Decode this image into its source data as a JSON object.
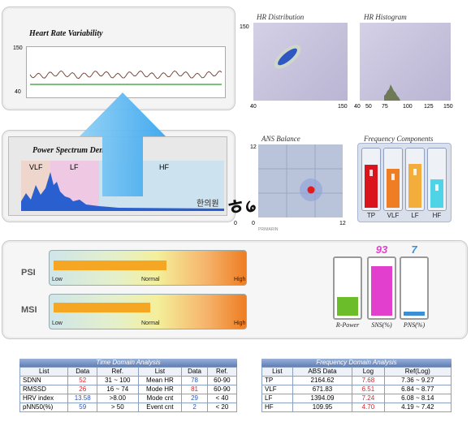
{
  "hrv": {
    "title": "Heart Rate Variability",
    "y_max": "150",
    "y_min": "40"
  },
  "hr_distribution": {
    "title": "HR Distribution",
    "y_max": "150",
    "x_min": "40",
    "x_max": "150"
  },
  "hr_histogram": {
    "title": "HR Histogram",
    "x_ticks": [
      "40",
      "50",
      "75",
      "100",
      "125",
      "150"
    ]
  },
  "psd": {
    "title": "Power Spectrum Den",
    "bands": [
      "VLF",
      "LF",
      "HF"
    ]
  },
  "watermark": {
    "korean": "한의원",
    "stamp": "PRIMARIN"
  },
  "ans_balance": {
    "title": "ANS Balance",
    "y_max": "12",
    "x_min": "0",
    "x_max": "12",
    "y_min": "0"
  },
  "freq_components": {
    "title": "Frequency Components",
    "bars": [
      {
        "label": "TP",
        "level": 0.75,
        "color": "#d9141c"
      },
      {
        "label": "VLF",
        "level": 0.68,
        "color": "#ef7d23"
      },
      {
        "label": "LF",
        "level": 0.77,
        "color": "#f3ad3b"
      },
      {
        "label": "HF",
        "level": 0.5,
        "color": "#4fd3e6"
      }
    ]
  },
  "psi": {
    "label": "PSI",
    "level": 0.61,
    "low": "Low",
    "normal": "Normal",
    "high": "High"
  },
  "msi": {
    "label": "MSI",
    "level": 0.52,
    "low": "Low",
    "normal": "Normal",
    "high": "High"
  },
  "gauges": [
    {
      "label": "R-Power",
      "value": "",
      "level": 0.35,
      "color": "#6bbd2a"
    },
    {
      "label": "SNS(%)",
      "value": "93",
      "level": 0.93,
      "color": "#e23fcf"
    },
    {
      "label": "PNS(%)",
      "value": "7",
      "level": 0.07,
      "color": "#3a8fd6"
    }
  ],
  "time_domain": {
    "caption": "Time Domain Analysis",
    "headers": [
      "List",
      "Data",
      "Ref.",
      "List",
      "Data",
      "Ref."
    ],
    "rows": [
      [
        "SDNN",
        "52",
        "31 ~ 100",
        "Mean HR",
        "78",
        "60-90"
      ],
      [
        "RMSSD",
        "26",
        "16 ~ 74",
        "Mode HR",
        "81",
        "60-90"
      ],
      [
        "HRV index",
        "13.58",
        ">8.00",
        "Mode cnt",
        "29",
        "< 40"
      ],
      [
        "pNN50(%)",
        "59",
        "> 50",
        "Event cnt",
        "2",
        "< 20"
      ]
    ]
  },
  "freq_domain": {
    "caption": "Frequency Domain Analysis",
    "headers": [
      "List",
      "ABS Data",
      "Log",
      "Ref(Log)"
    ],
    "rows": [
      [
        "TP",
        "2164.62",
        "7.68",
        "7.36 ~ 9.27"
      ],
      [
        "VLF",
        "671.83",
        "6.51",
        "6.84 ~ 8.77"
      ],
      [
        "LF",
        "1394.09",
        "7.24",
        "6.08 ~ 8.14"
      ],
      [
        "HF",
        "109.95",
        "4.70",
        "4.19 ~ 7.42"
      ]
    ]
  }
}
